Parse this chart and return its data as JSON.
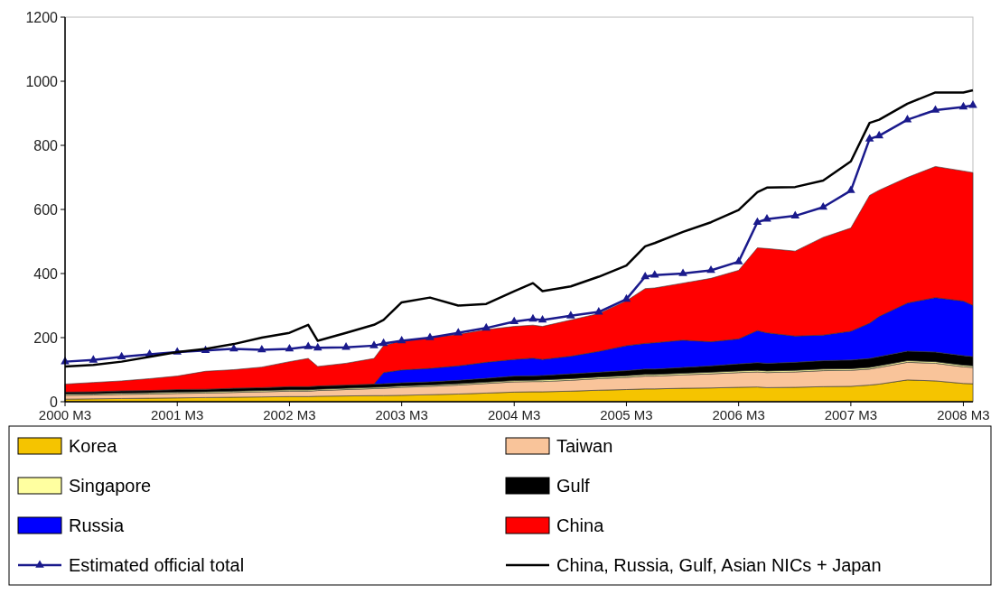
{
  "chart_data": {
    "type": "area",
    "stacked": true,
    "legend": "bottom",
    "grid": false,
    "x": [
      "2000-03",
      "2000-06",
      "2000-09",
      "2000-12",
      "2001-03",
      "2001-06",
      "2001-09",
      "2001-12",
      "2002-03",
      "2002-05",
      "2002-06",
      "2002-09",
      "2002-12",
      "2003-01",
      "2003-03",
      "2003-06",
      "2003-09",
      "2003-12",
      "2004-03",
      "2004-05",
      "2004-06",
      "2004-09",
      "2004-12",
      "2005-03",
      "2005-05",
      "2005-06",
      "2005-09",
      "2005-12",
      "2006-03",
      "2006-05",
      "2006-06",
      "2006-09",
      "2006-12",
      "2007-03",
      "2007-05",
      "2007-06",
      "2007-09",
      "2007-12",
      "2008-03",
      "2008-04"
    ],
    "xlim": [
      "2000-03",
      "2008-04"
    ],
    "xticks": [
      {
        "value": "2000-03",
        "label": "2000 M3"
      },
      {
        "value": "2001-03",
        "label": "2001 M3"
      },
      {
        "value": "2002-03",
        "label": "2002 M3"
      },
      {
        "value": "2003-03",
        "label": "2003 M3"
      },
      {
        "value": "2004-03",
        "label": "2004 M3"
      },
      {
        "value": "2005-03",
        "label": "2005 M3"
      },
      {
        "value": "2006-03",
        "label": "2006 M3"
      },
      {
        "value": "2007-03",
        "label": "2007 M3"
      },
      {
        "value": "2008-03",
        "label": "2008 M3"
      }
    ],
    "ylim": [
      0,
      1200
    ],
    "yticks": [
      0,
      200,
      400,
      600,
      800,
      1000,
      1200
    ],
    "series": [
      {
        "name": "Korea",
        "color": "#f5c400",
        "values": [
          8,
          9,
          10,
          11,
          12,
          13,
          14,
          15,
          16,
          16,
          17,
          18,
          19,
          19,
          20,
          22,
          24,
          27,
          30,
          31,
          31,
          33,
          36,
          38,
          40,
          40,
          42,
          43,
          45,
          46,
          44,
          45,
          47,
          48,
          52,
          55,
          68,
          65,
          57,
          56
        ]
      },
      {
        "name": "Taiwan",
        "color": "#f9c49a",
        "values": [
          12,
          12,
          13,
          13,
          14,
          14,
          15,
          16,
          17,
          17,
          18,
          20,
          22,
          23,
          25,
          26,
          28,
          30,
          32,
          32,
          32,
          34,
          36,
          38,
          40,
          40,
          42,
          44,
          46,
          47,
          47,
          48,
          50,
          50,
          50,
          52,
          55,
          55,
          52,
          51
        ]
      },
      {
        "name": "Singapore",
        "color": "#ffffa0",
        "values": [
          4,
          4,
          4,
          4,
          4,
          4,
          4,
          4,
          4,
          4,
          4,
          4,
          4,
          4,
          4,
          4,
          4,
          4,
          4,
          4,
          5,
          5,
          5,
          5,
          5,
          5,
          5,
          5,
          5,
          5,
          5,
          5,
          5,
          5,
          5,
          5,
          5,
          5,
          5,
          5
        ]
      },
      {
        "name": "Gulf",
        "color": "#000000",
        "values": [
          6,
          6,
          7,
          7,
          8,
          8,
          9,
          9,
          10,
          10,
          10,
          10,
          10,
          10,
          10,
          10,
          11,
          12,
          14,
          14,
          14,
          15,
          15,
          16,
          17,
          17,
          18,
          20,
          22,
          24,
          24,
          25,
          26,
          27,
          28,
          29,
          30,
          30,
          30,
          29
        ]
      },
      {
        "name": "Russia",
        "color": "#0000ff",
        "values": [
          0,
          0,
          0,
          0,
          0,
          0,
          0,
          0,
          0,
          0,
          0,
          0,
          0,
          35,
          40,
          42,
          45,
          50,
          52,
          55,
          50,
          55,
          65,
          78,
          80,
          82,
          85,
          75,
          78,
          100,
          95,
          82,
          80,
          90,
          110,
          125,
          150,
          170,
          170,
          160
        ]
      },
      {
        "name": "China",
        "color": "#ff0000",
        "values": [
          25,
          29,
          31,
          37,
          42,
          56,
          58,
          64,
          78,
          88,
          61,
          68,
          80,
          84,
          91,
          96,
          98,
          102,
          103,
          103,
          103,
          113,
          118,
          140,
          171,
          171,
          178,
          198,
          214,
          258,
          263,
          265,
          305,
          322,
          399,
          394,
          392,
          409,
          406,
          414
        ]
      },
      {
        "name": "Estimated official total",
        "type": "line",
        "color": "#1a1a8c",
        "marker": "triangle",
        "values": [
          125,
          130,
          140,
          148,
          155,
          160,
          165,
          162,
          165,
          172,
          168,
          170,
          175,
          182,
          190,
          200,
          215,
          230,
          250,
          258,
          255,
          268,
          280,
          320,
          390,
          395,
          400,
          410,
          437,
          560,
          570,
          580,
          607,
          659,
          820,
          830,
          880,
          910,
          920,
          925
        ]
      },
      {
        "name": "China, Russia, Gulf, Asian NICs + Japan",
        "type": "line",
        "color": "#000000",
        "marker": "none",
        "values": [
          110,
          115,
          125,
          140,
          155,
          165,
          180,
          200,
          215,
          240,
          190,
          215,
          240,
          255,
          310,
          325,
          300,
          305,
          345,
          370,
          345,
          360,
          390,
          425,
          485,
          495,
          530,
          560,
          598,
          654,
          668,
          670,
          690,
          750,
          870,
          880,
          930,
          965,
          965,
          972
        ]
      }
    ]
  }
}
